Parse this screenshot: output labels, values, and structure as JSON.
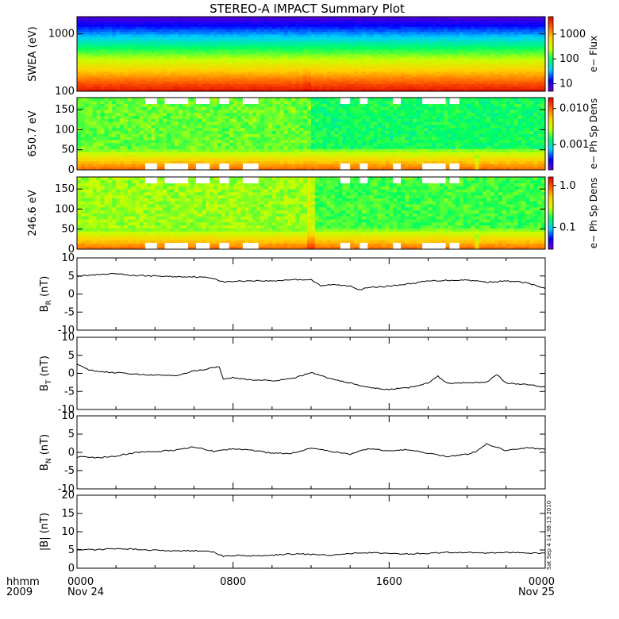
{
  "chart_data": {
    "type": "line",
    "title": "STEREO-A IMPACT Summary Plot",
    "x_axis": {
      "left_labels": [
        "hhmm",
        "2009"
      ],
      "ticks": [
        "0000",
        "0800",
        "1600",
        "0000"
      ],
      "dates": [
        "Nov 24",
        "",
        "",
        "Nov 25"
      ],
      "range_hours": [
        0,
        24
      ]
    },
    "timestamp": "Sat Sep  4 14:38:13 2010",
    "spectrograms": [
      {
        "ylabel": "SWEA (eV)",
        "yscale": "log",
        "ylim": [
          100,
          2000
        ],
        "yticks": [
          100,
          1000
        ],
        "ytick_labels": [
          "100",
          "1000"
        ],
        "colorbar_label": "e− Flux",
        "colorbar_ticks": [
          "10",
          "100",
          "1000"
        ],
        "colorbar_range": [
          5,
          5000
        ],
        "colorbar_scale": "log",
        "colorbar_colors": [
          "#6a00c8",
          "#0000ff",
          "#00d0ff",
          "#00ff60",
          "#c8ff00",
          "#ffd000",
          "#ff6000",
          "#e00000"
        ]
      },
      {
        "ylabel": "650.7 eV",
        "yscale": "linear",
        "ylim": [
          0,
          180
        ],
        "yticks": [
          0,
          50,
          100,
          150
        ],
        "colorbar_label": "e− Ph Sp Dens",
        "colorbar_ticks": [
          "0.001",
          "0.010"
        ],
        "colorbar_range": [
          0.0002,
          0.02
        ],
        "colorbar_scale": "log",
        "colorbar_colors": [
          "#6a00c8",
          "#0000ff",
          "#00d0ff",
          "#00ff60",
          "#c8ff00",
          "#ffd000",
          "#ff6000",
          "#e00000"
        ]
      },
      {
        "ylabel": "246.6 eV",
        "yscale": "linear",
        "ylim": [
          0,
          180
        ],
        "yticks": [
          0,
          50,
          100,
          150
        ],
        "colorbar_label": "e− Ph Sp Dens",
        "colorbar_ticks": [
          "0.1",
          "1.0"
        ],
        "colorbar_range": [
          0.03,
          1.6
        ],
        "colorbar_scale": "log",
        "colorbar_colors": [
          "#6a00c8",
          "#0000ff",
          "#00d0ff",
          "#00ff60",
          "#c8ff00",
          "#ffd000",
          "#ff6000",
          "#e00000"
        ]
      }
    ],
    "line_panels": [
      {
        "ylabel": "B",
        "ylabel_sub": "R",
        "ylabel_unit": " (nT)",
        "ylim": [
          -10,
          10
        ],
        "yticks": [
          -10,
          -5,
          0,
          5,
          10
        ],
        "x": [
          0,
          1,
          2,
          3,
          4,
          5,
          6,
          7,
          7.5,
          8,
          9,
          10,
          11,
          12,
          12.5,
          13,
          14,
          14.5,
          15,
          16,
          17,
          18,
          19,
          20,
          21,
          22,
          23,
          24
        ],
        "values": [
          5,
          5.3,
          5.6,
          5.1,
          5,
          4.8,
          4.8,
          4.4,
          3.3,
          3.5,
          3.7,
          3.6,
          4,
          4,
          2.2,
          2.6,
          2.3,
          1.2,
          1.8,
          2.2,
          2.8,
          3.6,
          3.8,
          3.9,
          3.3,
          3.6,
          3.2,
          1.5
        ]
      },
      {
        "ylabel": "B",
        "ylabel_sub": "T",
        "ylabel_unit": " (nT)",
        "ylim": [
          -10,
          10
        ],
        "yticks": [
          -10,
          -5,
          0,
          5,
          10
        ],
        "x": [
          0,
          0.5,
          1,
          2,
          3,
          4,
          5,
          6,
          7,
          7.3,
          7.5,
          8,
          9,
          10,
          11,
          12,
          13,
          14,
          15,
          16,
          17,
          18,
          18.5,
          19,
          20,
          21,
          21.5,
          22,
          23,
          24
        ],
        "values": [
          2.7,
          1.2,
          0.5,
          0.2,
          -0.2,
          -0.5,
          -0.6,
          0.6,
          1.6,
          1.8,
          -1.5,
          -1.2,
          -1.9,
          -2,
          -1.5,
          0.2,
          -1.5,
          -2.7,
          -4,
          -4.5,
          -3.9,
          -2.7,
          -0.8,
          -2.8,
          -2.6,
          -2.5,
          -0.3,
          -2.7,
          -3,
          -3.8
        ]
      },
      {
        "ylabel": "B",
        "ylabel_sub": "N",
        "ylabel_unit": " (nT)",
        "ylim": [
          -10,
          10
        ],
        "yticks": [
          -10,
          -5,
          0,
          5,
          10
        ],
        "x": [
          0,
          1,
          2,
          3,
          4,
          5,
          6,
          7,
          8,
          9,
          10,
          11,
          12,
          13,
          14,
          15,
          16,
          17,
          18,
          19,
          20,
          20.5,
          21,
          22,
          23,
          24
        ],
        "values": [
          -1.2,
          -1.5,
          -1,
          0,
          0.2,
          0.6,
          1.5,
          0.3,
          1,
          0.6,
          -0.3,
          -0.3,
          1.2,
          0.3,
          -0.5,
          1,
          0.3,
          0.8,
          -0.2,
          -1.2,
          -0.5,
          0.3,
          2.3,
          0.5,
          1.3,
          0.8
        ]
      },
      {
        "ylabel": "|B| (nT)",
        "ylim": [
          0,
          20
        ],
        "yticks": [
          0,
          5,
          10,
          15,
          20
        ],
        "x": [
          0,
          1,
          2,
          3,
          4,
          5,
          6,
          7,
          7.5,
          8,
          9,
          10,
          11,
          12,
          13,
          14,
          15,
          16,
          17,
          18,
          19,
          20,
          21,
          22,
          23,
          24
        ],
        "values": [
          5.2,
          5,
          5.4,
          5.2,
          4.9,
          4.7,
          4.8,
          4.5,
          3.3,
          3.5,
          3.4,
          3.6,
          3.9,
          3.8,
          3.5,
          4,
          4.3,
          4,
          3.9,
          4.1,
          4.3,
          4.3,
          4.1,
          4.3,
          4.2,
          4.1
        ]
      }
    ]
  }
}
